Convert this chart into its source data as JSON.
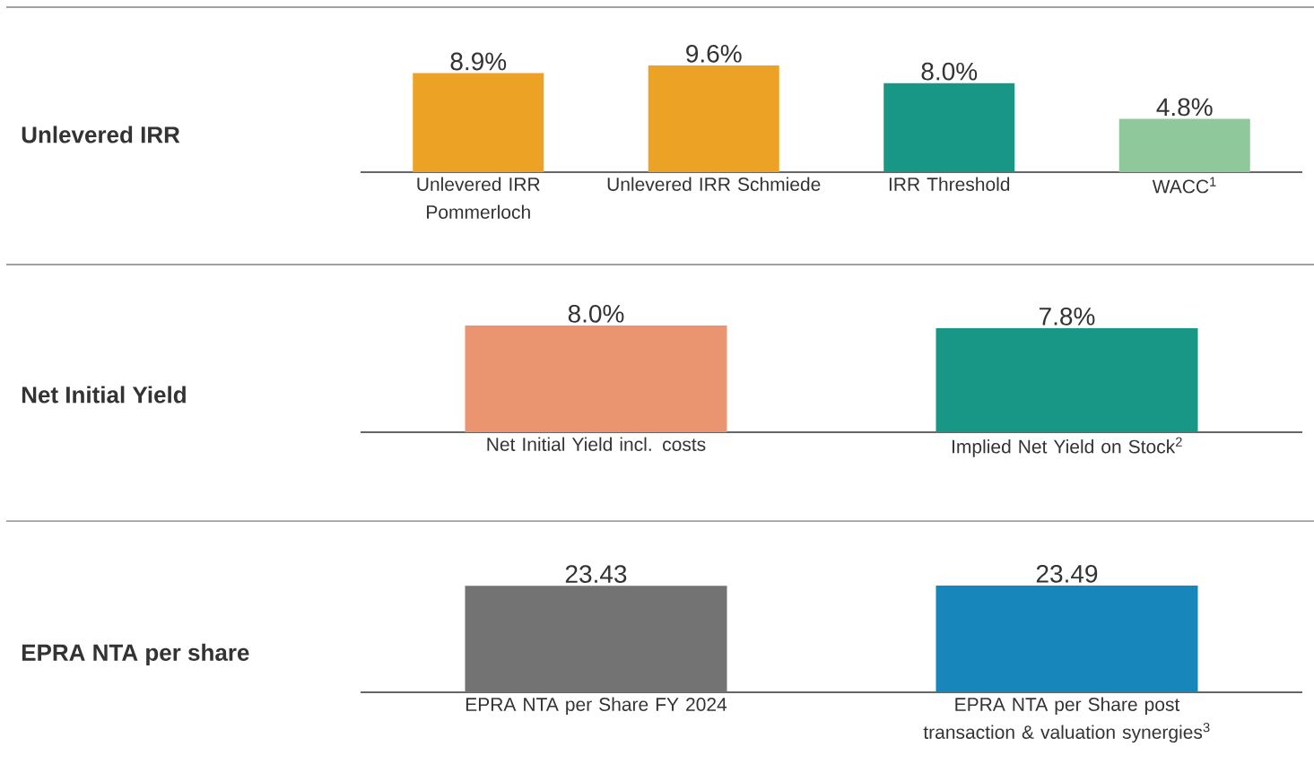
{
  "chart_data": [
    {
      "type": "bar",
      "ylabel": "Unlevered IRR",
      "categories": [
        "Unlevered IRR Pommerloch",
        "Unlevered IRR Schmiede",
        "IRR Threshold",
        "WACC$^{1}$"
      ],
      "values": [
        8.9,
        9.6,
        8.0,
        4.8
      ],
      "value_labels": [
        "8.9%",
        "9.6%",
        "8.0%",
        "4.8%"
      ],
      "colors": [
        "#eca225",
        "#eca225",
        "#199786",
        "#8fc89a"
      ]
    },
    {
      "type": "bar",
      "ylabel": "Net Initial Yield",
      "categories": [
        "Net Initial Yield incl. costs",
        "Implied Net Yield on Stock$^{2}$"
      ],
      "values": [
        8.0,
        7.8
      ],
      "value_labels": [
        "8.0%",
        "7.8%"
      ],
      "colors": [
        "#ea9470",
        "#199786"
      ]
    },
    {
      "type": "bar",
      "ylabel": "EPRA NTA per share",
      "categories": [
        "EPRA NTA per Share FY 2024",
        "EPRA NTA per Share post transaction & valuation synergies$^{3}$"
      ],
      "values": [
        23.43,
        23.49
      ],
      "data_labels": true,
      "colors": [
        "#737373",
        "#1787bb"
      ]
    }
  ]
}
